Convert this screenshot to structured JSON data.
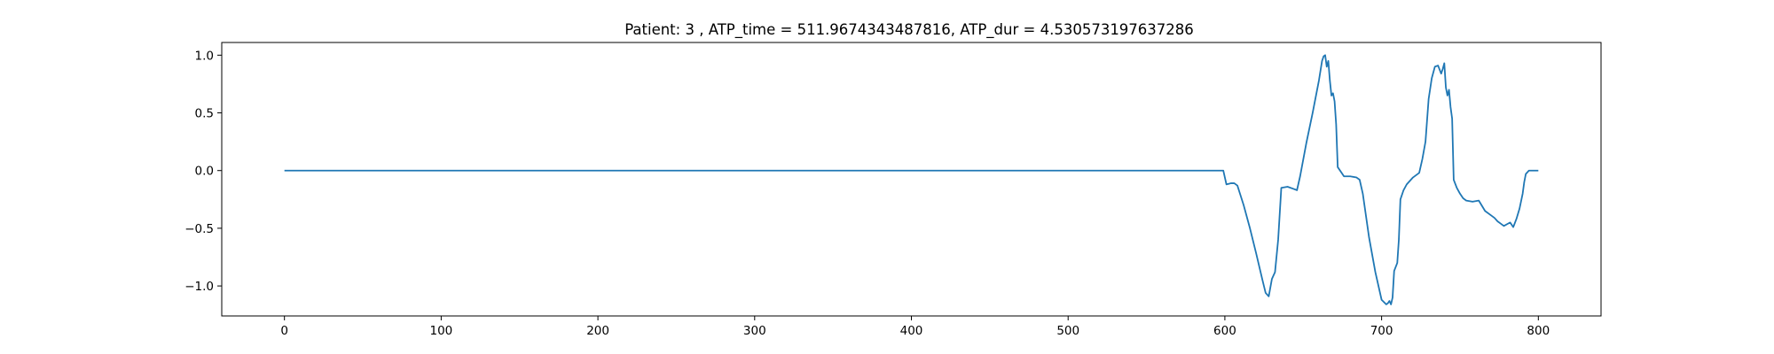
{
  "chart_data": {
    "type": "line",
    "title": "Patient: 3 , ATP_time = 511.9674343487816, ATP_dur = 4.530573197637286",
    "xlabel": "",
    "ylabel": "",
    "xlim": [
      -40,
      840
    ],
    "ylim": [
      -1.26,
      1.11
    ],
    "xticks": [
      0,
      100,
      200,
      300,
      400,
      500,
      600,
      700,
      800
    ],
    "yticks": [
      1.0,
      0.5,
      0.0,
      -0.5,
      -1.0
    ],
    "xtick_labels": [
      "0",
      "100",
      "200",
      "300",
      "400",
      "500",
      "600",
      "700",
      "800"
    ],
    "ytick_labels": [
      "1.0",
      "0.5",
      "0.0",
      "−0.5",
      "−1.0"
    ],
    "grid": false,
    "legend": "none",
    "series": [
      {
        "color": "#1f77b4",
        "x": [
          0,
          598,
          599,
          601,
          604,
          606,
          608,
          612,
          616,
          620,
          624,
          626,
          628,
          630,
          632,
          634,
          636,
          640,
          644,
          646,
          648,
          652,
          656,
          660,
          662,
          663,
          664,
          665,
          666,
          667,
          668,
          669,
          670,
          671,
          672,
          676,
          680,
          684,
          686,
          688,
          692,
          696,
          700,
          703,
          704,
          705,
          706,
          707,
          708,
          710,
          711,
          712,
          714,
          716,
          720,
          724,
          726,
          728,
          730,
          732,
          734,
          736,
          738,
          739,
          740,
          741,
          742,
          743,
          744,
          745,
          746,
          748,
          750,
          752,
          754,
          758,
          762,
          766,
          770,
          772,
          774,
          776,
          778,
          782,
          784,
          786,
          788,
          790,
          791,
          792,
          794,
          796,
          798,
          800
        ],
        "y": [
          0.0,
          0.0,
          0.0,
          -0.12,
          -0.11,
          -0.11,
          -0.13,
          -0.3,
          -0.5,
          -0.72,
          -0.95,
          -1.06,
          -1.09,
          -0.94,
          -0.88,
          -0.6,
          -0.15,
          -0.14,
          -0.16,
          -0.17,
          -0.05,
          0.24,
          0.5,
          0.78,
          0.95,
          0.99,
          1.0,
          0.9,
          0.95,
          0.78,
          0.65,
          0.67,
          0.6,
          0.4,
          0.03,
          -0.05,
          -0.05,
          -0.06,
          -0.08,
          -0.2,
          -0.58,
          -0.88,
          -1.12,
          -1.16,
          -1.15,
          -1.13,
          -1.16,
          -1.1,
          -0.87,
          -0.8,
          -0.6,
          -0.25,
          -0.17,
          -0.12,
          -0.06,
          -0.02,
          0.1,
          0.25,
          0.62,
          0.8,
          0.9,
          0.91,
          0.84,
          0.88,
          0.93,
          0.72,
          0.65,
          0.7,
          0.55,
          0.45,
          -0.08,
          -0.15,
          -0.2,
          -0.24,
          -0.26,
          -0.27,
          -0.26,
          -0.35,
          -0.39,
          -0.41,
          -0.44,
          -0.46,
          -0.48,
          -0.45,
          -0.49,
          -0.42,
          -0.33,
          -0.2,
          -0.1,
          -0.03,
          0.0,
          0.0,
          0.0,
          0.0
        ]
      }
    ]
  }
}
